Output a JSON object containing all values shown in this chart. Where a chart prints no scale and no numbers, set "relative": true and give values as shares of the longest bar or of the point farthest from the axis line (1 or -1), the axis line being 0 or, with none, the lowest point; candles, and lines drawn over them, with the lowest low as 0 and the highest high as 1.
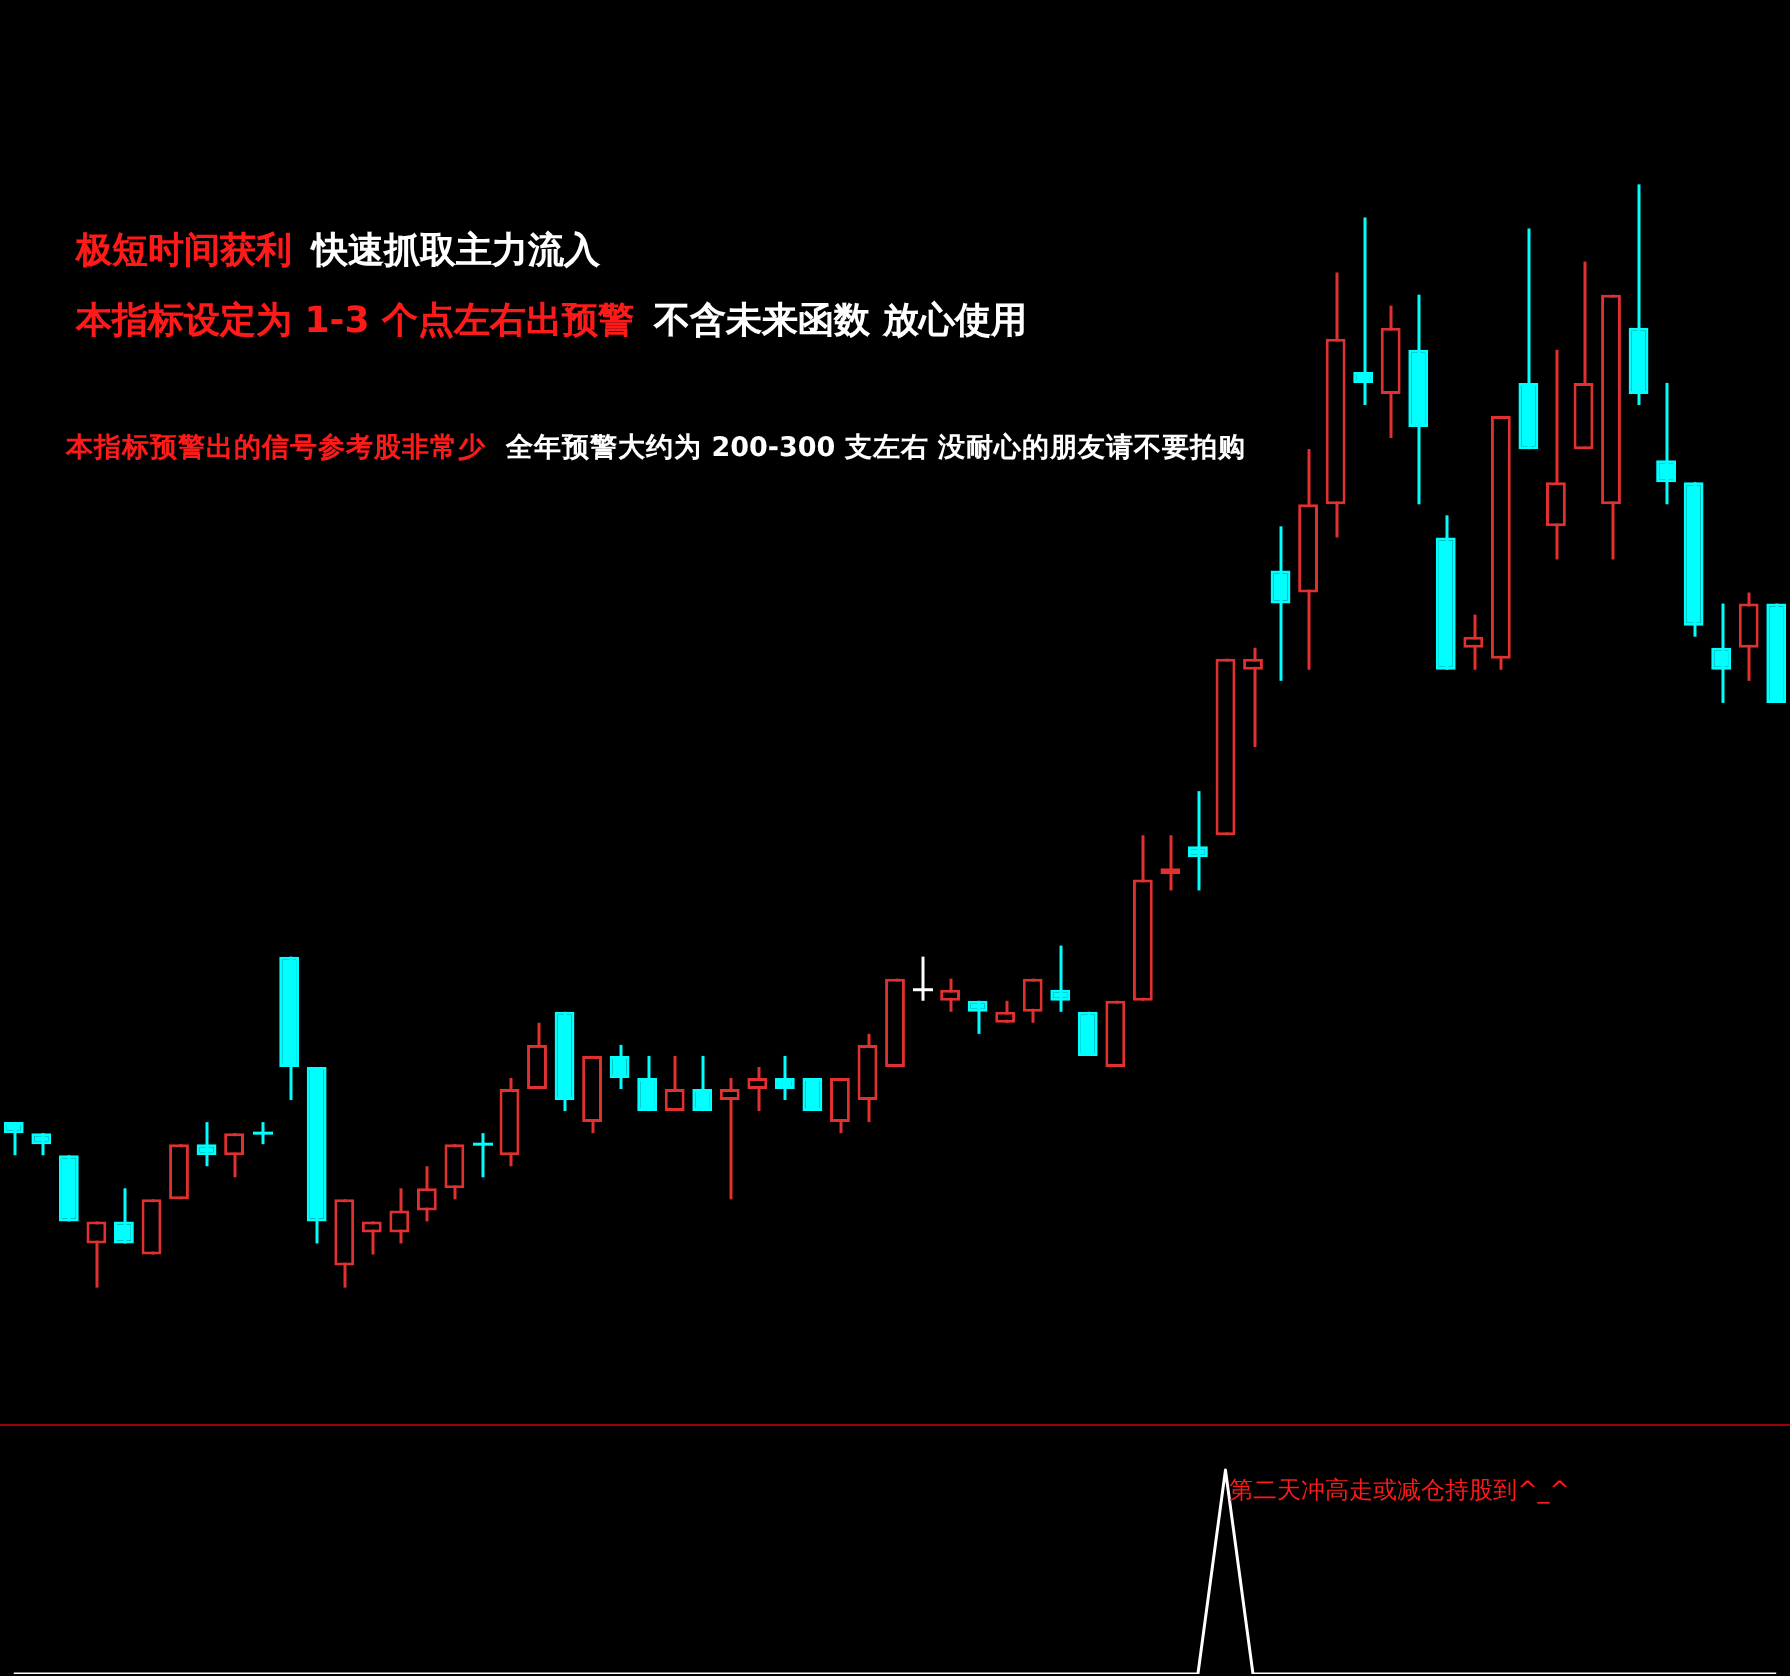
{
  "chart_data": [
    {
      "type": "candlestick",
      "relative": true,
      "categories": [
        null,
        null,
        null,
        null,
        null,
        null,
        null,
        null,
        null,
        null,
        null,
        null,
        null,
        null,
        null,
        null,
        null,
        null,
        null,
        null,
        null,
        null,
        null,
        null,
        null,
        null,
        null,
        null,
        null,
        null,
        null,
        null,
        null,
        null,
        null,
        null,
        null,
        null,
        null,
        null,
        null,
        null,
        null,
        null,
        null,
        null,
        null,
        null,
        null,
        null,
        null,
        null,
        null,
        null,
        null,
        null,
        null,
        null,
        null,
        null,
        null,
        null,
        null,
        null,
        null
      ],
      "ohlc": [
        [
          0.15,
          0.15,
          0.12,
          0.14
        ],
        [
          0.14,
          0.14,
          0.12,
          0.13
        ],
        [
          0.12,
          0.12,
          0.06,
          0.06
        ],
        [
          0.04,
          0.06,
          0,
          0.06
        ],
        [
          0.06,
          0.09,
          0.04,
          0.04
        ],
        [
          0.03,
          0.08,
          0.03,
          0.08
        ],
        [
          0.08,
          0.13,
          0.08,
          0.13
        ],
        [
          0.13,
          0.15,
          0.11,
          0.12
        ],
        [
          0.12,
          0.14,
          0.1,
          0.14
        ],
        [
          0.14,
          0.15,
          0.13,
          0.14
        ],
        [
          0.3,
          0.3,
          0.17,
          0.2
        ],
        [
          0.2,
          0.2,
          0.04,
          0.06
        ],
        [
          0.02,
          0.08,
          0,
          0.08
        ],
        [
          0.05,
          0.06,
          0.03,
          0.06
        ],
        [
          0.05,
          0.09,
          0.04,
          0.07
        ],
        [
          0.07,
          0.11,
          0.06,
          0.09
        ],
        [
          0.09,
          0.13,
          0.08,
          0.13
        ],
        [
          0.13,
          0.14,
          0.1,
          0.13
        ],
        [
          0.12,
          0.19,
          0.11,
          0.18
        ],
        [
          0.18,
          0.24,
          0.18,
          0.22
        ],
        [
          0.25,
          0.25,
          0.16,
          0.17
        ],
        [
          0.15,
          0.21,
          0.14,
          0.21
        ],
        [
          0.21,
          0.22,
          0.18,
          0.19
        ],
        [
          0.19,
          0.21,
          0.16,
          0.16
        ],
        [
          0.16,
          0.21,
          0.16,
          0.18
        ],
        [
          0.18,
          0.21,
          0.16,
          0.16
        ],
        [
          0.17,
          0.19,
          0.08,
          0.18
        ],
        [
          0.18,
          0.2,
          0.16,
          0.19
        ],
        [
          0.19,
          0.21,
          0.17,
          0.18
        ],
        [
          0.19,
          0.19,
          0.16,
          0.16
        ],
        [
          0.15,
          0.19,
          0.14,
          0.19
        ],
        [
          0.17,
          0.23,
          0.15,
          0.22
        ],
        [
          0.2,
          0.28,
          0.2,
          0.28
        ],
        [
          0.27,
          0.3,
          0.26,
          0.27
        ],
        [
          0.26,
          0.28,
          0.25,
          0.27
        ],
        [
          0.26,
          0.26,
          0.23,
          0.25
        ],
        [
          0.24,
          0.26,
          0.24,
          0.25
        ],
        [
          0.25,
          0.28,
          0.24,
          0.28
        ],
        [
          0.27,
          0.31,
          0.25,
          0.26
        ],
        [
          0.25,
          0.25,
          0.21,
          0.21
        ],
        [
          0.2,
          0.26,
          0.2,
          0.26
        ],
        [
          0.26,
          0.41,
          0.26,
          0.37
        ],
        [
          0.375,
          0.41,
          0.36,
          0.38
        ],
        [
          0.4,
          0.45,
          0.36,
          0.39
        ],
        [
          0.41,
          0.57,
          0.41,
          0.57
        ],
        [
          0.56,
          0.58,
          0.49,
          0.57
        ],
        [
          0.65,
          0.69,
          0.55,
          0.62
        ],
        [
          0.63,
          0.76,
          0.56,
          0.71
        ],
        [
          0.71,
          0.92,
          0.68,
          0.86
        ],
        [
          0.83,
          0.97,
          0.8,
          0.82
        ],
        [
          0.81,
          0.89,
          0.77,
          0.87
        ],
        [
          0.85,
          0.9,
          0.71,
          0.78
        ],
        [
          0.68,
          0.7,
          0.56,
          0.56
        ],
        [
          0.58,
          0.61,
          0.56,
          0.59
        ],
        [
          0.57,
          0.79,
          0.56,
          0.79
        ],
        [
          0.82,
          0.96,
          0.76,
          0.76
        ],
        [
          0.69,
          0.85,
          0.66,
          0.73
        ],
        [
          0.76,
          0.93,
          0.76,
          0.82
        ],
        [
          0.71,
          0.9,
          0.66,
          0.9
        ],
        [
          0.87,
          1,
          0.8,
          0.81
        ],
        [
          0.75,
          0.82,
          0.71,
          0.73
        ],
        [
          0.73,
          0.73,
          0.59,
          0.6
        ],
        [
          0.58,
          0.62,
          0.53,
          0.56
        ],
        [
          0.58,
          0.63,
          0.55,
          0.62
        ],
        [
          0.62,
          0.62,
          0.53,
          0.53
        ]
      ],
      "colors": [
        "#00ffff",
        "#00ffff",
        "#00ffff",
        "#e03030",
        "#00ffff",
        "#e03030",
        "#e03030",
        "#00ffff",
        "#e03030",
        "#00ffff",
        "#00ffff",
        "#00ffff",
        "#e03030",
        "#e03030",
        "#e03030",
        "#e03030",
        "#e03030",
        "#00ffff",
        "#e03030",
        "#e03030",
        "#00ffff",
        "#e03030",
        "#00ffff",
        "#00ffff",
        "#e03030",
        "#00ffff",
        "#e03030",
        "#e03030",
        "#00ffff",
        "#00ffff",
        "#e03030",
        "#e03030",
        "#e03030",
        "#ffffff",
        "#e03030",
        "#00ffff",
        "#e03030",
        "#e03030",
        "#00ffff",
        "#00ffff",
        "#e03030",
        "#e03030",
        "#e03030",
        "#00ffff",
        "#e03030",
        "#e03030",
        "#00ffff",
        "#e03030",
        "#e03030",
        "#00ffff",
        "#e03030",
        "#00ffff",
        "#00ffff",
        "#e03030",
        "#e03030",
        "#00ffff",
        "#e03030",
        "#e03030",
        "#e03030",
        "#00ffff",
        "#00ffff",
        "#00ffff",
        "#00ffff",
        "#e03030",
        "#00ffff"
      ],
      "annotations": [
        "极短时间获利",
        "快速抓取主力流入",
        "本指标设定为 1-3 个点左右出预警",
        "不含未来函数 放心使用",
        "本指标预警出的信号参考股非常少",
        "全年预警大约为 200-300 支左右 没耐心的朋友请不要拍购"
      ]
    },
    {
      "type": "line",
      "relative": true,
      "categories": [
        null,
        null,
        null,
        null,
        null,
        null,
        null,
        null,
        null,
        null,
        null,
        null,
        null,
        null,
        null,
        null,
        null,
        null,
        null,
        null,
        null,
        null,
        null,
        null,
        null,
        null,
        null,
        null,
        null,
        null,
        null,
        null,
        null,
        null,
        null,
        null,
        null,
        null,
        null,
        null,
        null,
        null,
        null,
        null,
        null,
        null,
        null,
        null,
        null,
        null,
        null,
        null,
        null,
        null,
        null,
        null,
        null,
        null,
        null,
        null,
        null,
        null,
        null,
        null,
        null
      ],
      "series": [
        {
          "color": "#ffffff",
          "values": [
            0,
            0,
            0,
            0,
            0,
            0,
            0,
            0,
            0,
            0,
            0,
            0,
            0,
            0,
            0,
            0,
            0,
            0,
            0,
            0,
            0,
            0,
            0,
            0,
            0,
            0,
            0,
            0,
            0,
            0,
            0,
            0,
            0,
            0,
            0,
            0,
            0,
            0,
            0,
            0,
            0,
            0,
            0,
            0,
            1,
            0,
            0,
            0,
            0,
            0,
            0,
            0,
            0,
            0,
            0,
            0,
            0,
            0,
            0,
            0,
            0,
            0,
            0,
            0,
            0
          ]
        }
      ],
      "annotations": [
        "第二天冲高走或减仓持股到^_^"
      ]
    }
  ]
}
